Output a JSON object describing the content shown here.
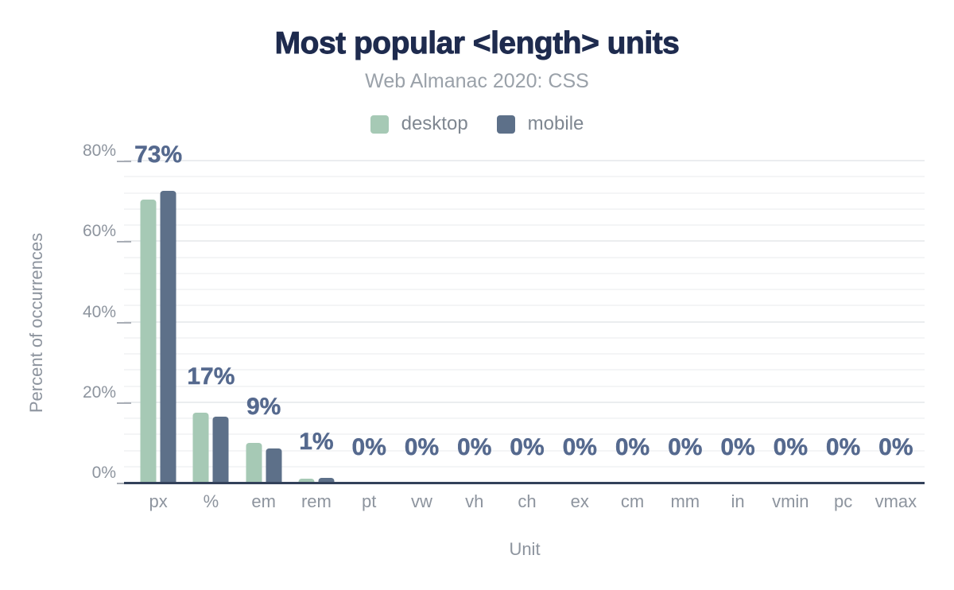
{
  "chart_data": {
    "type": "bar",
    "title": "Most popular <length> units",
    "subtitle": "Web Almanac 2020: CSS",
    "xlabel": "Unit",
    "ylabel": "Percent of occurrences",
    "categories": [
      "px",
      "%",
      "em",
      "rem",
      "pt",
      "vw",
      "vh",
      "ch",
      "ex",
      "cm",
      "mm",
      "in",
      "vmin",
      "pc",
      "vmax"
    ],
    "series": [
      {
        "name": "desktop",
        "color": "#a6c9b5",
        "values": [
          70.5,
          17.6,
          10.0,
          1.2,
          0,
          0,
          0,
          0,
          0,
          0,
          0,
          0,
          0,
          0,
          0
        ]
      },
      {
        "name": "mobile",
        "color": "#5d7089",
        "values": [
          72.6,
          16.6,
          8.6,
          1.4,
          0,
          0,
          0,
          0,
          0,
          0,
          0,
          0,
          0,
          0,
          0
        ]
      }
    ],
    "bar_labels": [
      "73%",
      "17%",
      "9%",
      "1%",
      "0%",
      "0%",
      "0%",
      "0%",
      "0%",
      "0%",
      "0%",
      "0%",
      "0%",
      "0%",
      "0%"
    ],
    "ylim": [
      0,
      80
    ],
    "y_tick_step": 20,
    "y_tick_labels": [
      "0%",
      "20%",
      "40%",
      "60%",
      "80%"
    ],
    "grid_minor_step": 4,
    "grid": true,
    "legend_position": "top"
  },
  "colors": {
    "title": "#1e2b4e",
    "subtitle": "#9aa1a9",
    "data_label": "#55698e",
    "axis_line": "#33415a",
    "tick_label": "#8d949e",
    "grid_minor": "#f4f5f6",
    "grid_major": "#ebedef",
    "desktop_bar": "#a6c9b5",
    "mobile_bar": "#5d7089"
  }
}
